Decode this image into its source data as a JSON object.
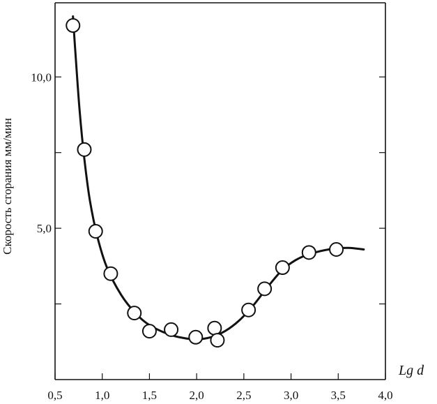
{
  "chart_data": {
    "type": "scatter",
    "title": "",
    "xlabel": "Lg d",
    "ylabel": "Скорость сгорания мм/мин",
    "xlim": [
      0.5,
      4.0
    ],
    "ylim": [
      0.0,
      12.0
    ],
    "x_ticks": [
      0.5,
      1.0,
      1.5,
      2.0,
      2.5,
      3.0,
      3.5,
      4.0
    ],
    "x_tick_labels": [
      "0,5",
      "1,0",
      "1,5",
      "2,0",
      "2,5",
      "3,0",
      "3,5",
      "4,0"
    ],
    "y_ticks": [
      2.5,
      5.0,
      7.5,
      10.0
    ],
    "y_tick_labels": [
      "",
      "5,0",
      "",
      "10,0"
    ],
    "grid": false,
    "legend": "none",
    "points": [
      {
        "x": 0.69,
        "y": 11.7
      },
      {
        "x": 0.81,
        "y": 7.6
      },
      {
        "x": 0.93,
        "y": 4.9
      },
      {
        "x": 1.09,
        "y": 3.5
      },
      {
        "x": 1.34,
        "y": 2.2
      },
      {
        "x": 1.5,
        "y": 1.6
      },
      {
        "x": 1.73,
        "y": 1.65
      },
      {
        "x": 1.99,
        "y": 1.4
      },
      {
        "x": 2.19,
        "y": 1.7
      },
      {
        "x": 2.22,
        "y": 1.3
      },
      {
        "x": 2.55,
        "y": 2.3
      },
      {
        "x": 2.72,
        "y": 3.0
      },
      {
        "x": 2.91,
        "y": 3.7
      },
      {
        "x": 3.19,
        "y": 4.2
      },
      {
        "x": 3.48,
        "y": 4.3
      }
    ],
    "fit_curve": [
      {
        "x": 0.69,
        "y": 12.0
      },
      {
        "x": 0.72,
        "y": 10.6
      },
      {
        "x": 0.76,
        "y": 8.9
      },
      {
        "x": 0.81,
        "y": 7.3
      },
      {
        "x": 0.87,
        "y": 5.9
      },
      {
        "x": 0.95,
        "y": 4.7
      },
      {
        "x": 1.05,
        "y": 3.7
      },
      {
        "x": 1.2,
        "y": 2.8
      },
      {
        "x": 1.35,
        "y": 2.2
      },
      {
        "x": 1.5,
        "y": 1.8
      },
      {
        "x": 1.7,
        "y": 1.5
      },
      {
        "x": 1.85,
        "y": 1.38
      },
      {
        "x": 2.0,
        "y": 1.33
      },
      {
        "x": 2.15,
        "y": 1.4
      },
      {
        "x": 2.3,
        "y": 1.6
      },
      {
        "x": 2.45,
        "y": 1.95
      },
      {
        "x": 2.6,
        "y": 2.45
      },
      {
        "x": 2.75,
        "y": 3.05
      },
      {
        "x": 2.9,
        "y": 3.6
      },
      {
        "x": 3.05,
        "y": 3.95
      },
      {
        "x": 3.2,
        "y": 4.15
      },
      {
        "x": 3.4,
        "y": 4.3
      },
      {
        "x": 3.6,
        "y": 4.35
      },
      {
        "x": 3.77,
        "y": 4.3
      }
    ]
  }
}
